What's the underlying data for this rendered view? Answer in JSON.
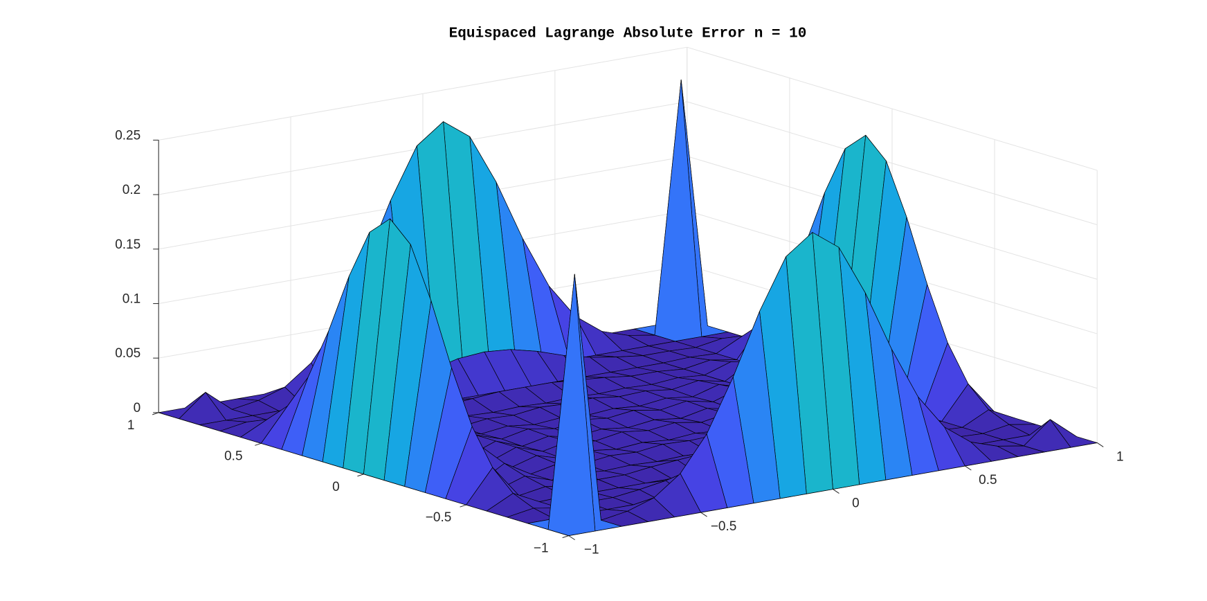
{
  "chart_data": {
    "type": "surface",
    "title": "Equispaced Lagrange Absolute Error n = 10",
    "x": [
      -1,
      -0.9,
      -0.8,
      -0.7,
      -0.6,
      -0.5,
      -0.4,
      -0.3,
      -0.2,
      -0.1,
      0,
      0.1,
      0.2,
      0.3,
      0.4,
      0.5,
      0.6,
      0.7,
      0.8,
      0.9,
      1
    ],
    "y": [
      -1,
      -0.9,
      -0.8,
      -0.7,
      -0.6,
      -0.5,
      -0.4,
      -0.3,
      -0.2,
      -0.1,
      0,
      0.1,
      0.2,
      0.3,
      0.4,
      0.5,
      0.6,
      0.7,
      0.8,
      0.9,
      1
    ],
    "z": [
      [
        0,
        0,
        0,
        0,
        0,
        0,
        0,
        0,
        0,
        0,
        0,
        0,
        0,
        0,
        0,
        0,
        0,
        0,
        0,
        0,
        0
      ],
      [
        0,
        0.23,
        0,
        0.004,
        0.012,
        0.03,
        0.062,
        0.11,
        0.166,
        0.212,
        0.23,
        0.212,
        0.166,
        0.11,
        0.062,
        0.03,
        0.012,
        0.004,
        0,
        0.02,
        0
      ],
      [
        0,
        0,
        0,
        0,
        0,
        0,
        0,
        0,
        0,
        0,
        0,
        0,
        0,
        0,
        0,
        0,
        0,
        0,
        0,
        0,
        0
      ],
      [
        0,
        0.004,
        0,
        0.001,
        0.001,
        0.004,
        0.008,
        0.014,
        0.022,
        0.028,
        0.03,
        0.028,
        0.022,
        0.014,
        0.008,
        0.004,
        0.001,
        0.001,
        0,
        0.004,
        0
      ],
      [
        0,
        0.012,
        0,
        0.001,
        0,
        0,
        0,
        0,
        0,
        0,
        0,
        0,
        0,
        0,
        0,
        0,
        0,
        0.001,
        0,
        0.012,
        0
      ],
      [
        0,
        0.03,
        0,
        0.004,
        0,
        0.002,
        0.002,
        0.005,
        0.007,
        0.009,
        0.009,
        0.009,
        0.007,
        0.005,
        0.002,
        0.002,
        0,
        0.004,
        0,
        0.03,
        0
      ],
      [
        0,
        0.062,
        0,
        0.008,
        0,
        0.002,
        0,
        0.001,
        0,
        0.001,
        0,
        0.001,
        0,
        0.001,
        0,
        0.002,
        0,
        0.008,
        0,
        0.062,
        0
      ],
      [
        0,
        0.11,
        0,
        0.014,
        0,
        0.005,
        0.001,
        0.004,
        0.003,
        0.006,
        0.005,
        0.006,
        0.003,
        0.004,
        0.001,
        0.005,
        0,
        0.014,
        0,
        0.11,
        0
      ],
      [
        0,
        0.166,
        0,
        0.022,
        0,
        0.007,
        0,
        0.003,
        0,
        0.002,
        0,
        0.002,
        0,
        0.003,
        0,
        0.007,
        0,
        0.022,
        0,
        0.166,
        0
      ],
      [
        0,
        0.212,
        0,
        0.028,
        0,
        0.009,
        0.001,
        0.006,
        0.002,
        0.006,
        0.003,
        0.006,
        0.002,
        0.006,
        0.001,
        0.009,
        0,
        0.028,
        0,
        0.212,
        0
      ],
      [
        0,
        0.23,
        0,
        0.03,
        0,
        0.009,
        0,
        0.005,
        0,
        0.003,
        0,
        0.003,
        0,
        0.005,
        0,
        0.009,
        0,
        0.03,
        0,
        0.23,
        0
      ],
      [
        0,
        0.212,
        0,
        0.028,
        0,
        0.009,
        0.001,
        0.006,
        0.002,
        0.006,
        0.003,
        0.006,
        0.002,
        0.006,
        0.001,
        0.009,
        0,
        0.028,
        0,
        0.212,
        0
      ],
      [
        0,
        0.166,
        0,
        0.022,
        0,
        0.007,
        0,
        0.003,
        0,
        0.002,
        0,
        0.002,
        0,
        0.003,
        0,
        0.007,
        0,
        0.022,
        0,
        0.166,
        0
      ],
      [
        0,
        0.11,
        0,
        0.014,
        0,
        0.005,
        0.001,
        0.004,
        0.003,
        0.006,
        0.005,
        0.006,
        0.003,
        0.004,
        0.001,
        0.005,
        0,
        0.014,
        0,
        0.11,
        0
      ],
      [
        0,
        0.062,
        0,
        0.008,
        0,
        0.002,
        0,
        0.001,
        0,
        0.001,
        0,
        0.001,
        0,
        0.001,
        0,
        0.002,
        0,
        0.008,
        0,
        0.062,
        0
      ],
      [
        0,
        0.03,
        0,
        0.004,
        0,
        0.002,
        0.002,
        0.005,
        0.007,
        0.009,
        0.009,
        0.009,
        0.007,
        0.005,
        0.002,
        0.002,
        0,
        0.004,
        0,
        0.03,
        0
      ],
      [
        0,
        0.012,
        0,
        0.001,
        0,
        0,
        0,
        0,
        0,
        0,
        0,
        0,
        0,
        0,
        0,
        0,
        0,
        0.001,
        0,
        0.012,
        0
      ],
      [
        0,
        0.004,
        0,
        0.001,
        0.001,
        0.004,
        0.008,
        0.014,
        0.022,
        0.028,
        0.03,
        0.028,
        0.022,
        0.014,
        0.008,
        0.004,
        0.001,
        0.001,
        0,
        0.004,
        0
      ],
      [
        0,
        0,
        0,
        0,
        0,
        0,
        0,
        0,
        0,
        0,
        0,
        0,
        0,
        0,
        0,
        0,
        0,
        0,
        0,
        0,
        0
      ],
      [
        0,
        0.02,
        0,
        0.004,
        0.012,
        0.03,
        0.062,
        0.11,
        0.166,
        0.212,
        0.23,
        0.212,
        0.166,
        0.11,
        0.062,
        0.03,
        0.012,
        0.004,
        0,
        0.23,
        0
      ],
      [
        0,
        0,
        0,
        0,
        0,
        0,
        0,
        0,
        0,
        0,
        0,
        0,
        0,
        0,
        0,
        0,
        0,
        0,
        0,
        0,
        0
      ]
    ],
    "xlim": [
      -1,
      1
    ],
    "ylim": [
      -1,
      1
    ],
    "zlim": [
      0,
      0.25
    ],
    "xticks": [
      {
        "value": -1,
        "label": "−1"
      },
      {
        "value": -0.5,
        "label": "−0.5"
      },
      0,
      0.5,
      1
    ],
    "yticks": [
      {
        "value": -1,
        "label": "−1"
      },
      {
        "value": -0.5,
        "label": "−0.5"
      },
      0,
      0.5,
      1
    ],
    "zticks": [
      0,
      0.05,
      0.1,
      0.15,
      0.2,
      0.25
    ],
    "grid": true,
    "edge_color": "#000000",
    "colormap": [
      "#3e26a8",
      "#4746eb",
      "#3a6bfc",
      "#2390f1",
      "#12b0dd",
      "#2bc0a8",
      "#7ac765",
      "#d7ba3d",
      "#fcc03a",
      "#f9fb0e"
    ]
  }
}
